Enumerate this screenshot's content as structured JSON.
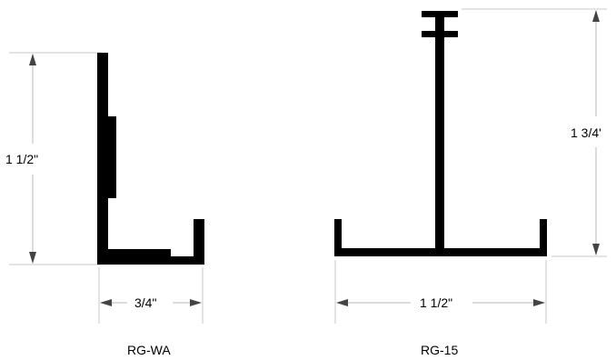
{
  "profiles": {
    "rg_wa": {
      "label": "RG-WA",
      "height_dimension": "1 1/2\"",
      "width_dimension": "3/4\""
    },
    "rg_15": {
      "label": "RG-15",
      "height_dimension": "1 3/4'",
      "width_dimension": "1 1/2\""
    }
  },
  "colors": {
    "profile_fill": "#000000",
    "dimension_line": "#b8b8b8",
    "text": "#000000"
  }
}
